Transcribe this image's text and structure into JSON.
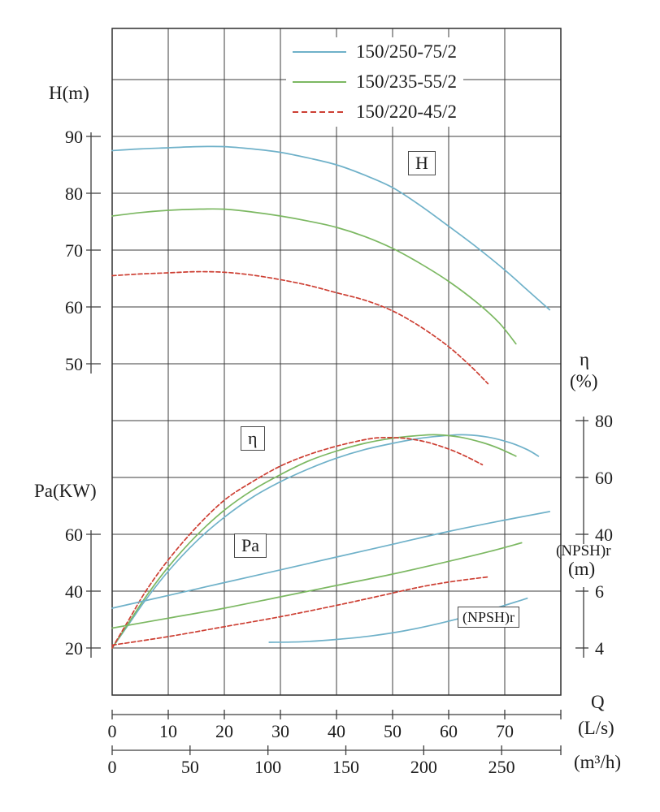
{
  "legend": {
    "items": [
      {
        "label": "150/250-75/2",
        "color": "#6fb1c9",
        "dash": "none"
      },
      {
        "label": "150/235-55/2",
        "color": "#7cb862",
        "dash": "none"
      },
      {
        "label": "150/220-45/2",
        "color": "#cd3f33",
        "dash": "5 3"
      }
    ]
  },
  "labels": {
    "h_axis": "H(m)",
    "pa_axis": "Pa(KW)",
    "eta": "η",
    "eta_unit": "(%)",
    "npsh": "(NPSH)r",
    "npsh_unit": "(m)",
    "q": "Q",
    "q_unit_ls": "(L/s)",
    "q_unit_m3h": "(m³/h)"
  },
  "curve_boxes": {
    "h": "H",
    "eta": "η",
    "pa": "Pa",
    "npsh": "(NPSH)r"
  },
  "chart_data": {
    "type": "line",
    "x_axis": {
      "label": "Q",
      "primary_unit": "L/s",
      "secondary_unit": "m³/h",
      "range_ls": [
        0,
        80
      ],
      "ls_ticks": [
        0,
        10,
        20,
        30,
        40,
        50,
        60,
        70
      ],
      "m3h_ticks": [
        0,
        50,
        100,
        150,
        200,
        250
      ]
    },
    "y_axes": {
      "H": {
        "title": "H(m)",
        "ticks": [
          90,
          80,
          70,
          60,
          50
        ]
      },
      "Pa": {
        "title": "Pa(KW)",
        "ticks": [
          60,
          40,
          20
        ]
      },
      "eta": {
        "title": "η(%)",
        "ticks": [
          80,
          60,
          40
        ]
      },
      "npsh": {
        "title": "(NPSH)r (m)",
        "ticks": [
          6,
          4
        ]
      }
    },
    "grid": true,
    "legend_position": "top",
    "series": [
      {
        "name": "H-150-250-75-2",
        "model": "150/250-75/2",
        "axis": "H",
        "color": "#6fb1c9",
        "dash": "none",
        "points": [
          [
            0,
            87.5
          ],
          [
            5,
            87.8
          ],
          [
            10,
            88
          ],
          [
            15,
            88.2
          ],
          [
            20,
            88.2
          ],
          [
            25,
            87.8
          ],
          [
            30,
            87.2
          ],
          [
            35,
            86.2
          ],
          [
            40,
            85
          ],
          [
            45,
            83.2
          ],
          [
            50,
            81
          ],
          [
            55,
            77.8
          ],
          [
            60,
            74.2
          ],
          [
            65,
            70.5
          ],
          [
            70,
            66.5
          ],
          [
            74,
            63
          ],
          [
            78,
            59.5
          ]
        ]
      },
      {
        "name": "H-150-235-55-2",
        "model": "150/235-55/2",
        "axis": "H",
        "color": "#7cb862",
        "dash": "none",
        "points": [
          [
            0,
            76
          ],
          [
            5,
            76.6
          ],
          [
            10,
            77
          ],
          [
            15,
            77.2
          ],
          [
            20,
            77.2
          ],
          [
            25,
            76.7
          ],
          [
            30,
            76
          ],
          [
            35,
            75.1
          ],
          [
            40,
            74
          ],
          [
            45,
            72.4
          ],
          [
            50,
            70.3
          ],
          [
            55,
            67.6
          ],
          [
            60,
            64.5
          ],
          [
            65,
            60.8
          ],
          [
            69,
            57.2
          ],
          [
            72,
            53.5
          ]
        ]
      },
      {
        "name": "H-150-220-45-2",
        "model": "150/220-45/2",
        "axis": "H",
        "color": "#cd3f33",
        "dash": "5 3",
        "points": [
          [
            0,
            65.5
          ],
          [
            5,
            65.8
          ],
          [
            10,
            66
          ],
          [
            15,
            66.2
          ],
          [
            20,
            66.1
          ],
          [
            25,
            65.6
          ],
          [
            30,
            64.8
          ],
          [
            35,
            63.8
          ],
          [
            40,
            62.5
          ],
          [
            45,
            61.2
          ],
          [
            50,
            59.3
          ],
          [
            55,
            56.5
          ],
          [
            60,
            53
          ],
          [
            64,
            49.5
          ],
          [
            67,
            46.5
          ]
        ]
      },
      {
        "name": "eta-150-250-75-2",
        "model": "150/250-75/2",
        "axis": "eta",
        "color": "#6fb1c9",
        "dash": "none",
        "points": [
          [
            0,
            0
          ],
          [
            3,
            8.5
          ],
          [
            6,
            17
          ],
          [
            10,
            27
          ],
          [
            15,
            37.5
          ],
          [
            20,
            46
          ],
          [
            25,
            53
          ],
          [
            30,
            58.5
          ],
          [
            35,
            63
          ],
          [
            40,
            66.8
          ],
          [
            45,
            69.8
          ],
          [
            50,
            72
          ],
          [
            55,
            73.8
          ],
          [
            60,
            74.8
          ],
          [
            63,
            75
          ],
          [
            67,
            74.2
          ],
          [
            71,
            72.2
          ],
          [
            74,
            69.8
          ],
          [
            76,
            67.5
          ]
        ]
      },
      {
        "name": "eta-150-235-55-2",
        "model": "150/235-55/2",
        "axis": "eta",
        "color": "#7cb862",
        "dash": "none",
        "points": [
          [
            0,
            0
          ],
          [
            3,
            9
          ],
          [
            6,
            18
          ],
          [
            10,
            28.5
          ],
          [
            15,
            39.5
          ],
          [
            20,
            48.5
          ],
          [
            25,
            55.5
          ],
          [
            30,
            61
          ],
          [
            35,
            65.8
          ],
          [
            40,
            69.3
          ],
          [
            45,
            72
          ],
          [
            50,
            73.8
          ],
          [
            55,
            74.8
          ],
          [
            58,
            75
          ],
          [
            62,
            74.2
          ],
          [
            66,
            72.3
          ],
          [
            69,
            70.2
          ],
          [
            72,
            67.5
          ]
        ]
      },
      {
        "name": "eta-150-220-45-2",
        "model": "150/220-45/2",
        "axis": "eta",
        "color": "#cd3f33",
        "dash": "5 3",
        "points": [
          [
            0,
            0
          ],
          [
            3,
            10
          ],
          [
            6,
            20
          ],
          [
            10,
            31
          ],
          [
            15,
            42.5
          ],
          [
            20,
            52
          ],
          [
            25,
            58.5
          ],
          [
            30,
            64
          ],
          [
            35,
            68
          ],
          [
            40,
            71
          ],
          [
            45,
            73.3
          ],
          [
            48,
            74
          ],
          [
            52,
            73.8
          ],
          [
            56,
            72.5
          ],
          [
            60,
            70
          ],
          [
            63,
            67.5
          ],
          [
            66,
            64.5
          ]
        ]
      },
      {
        "name": "Pa-150-250-75-2",
        "model": "150/250-75/2",
        "axis": "Pa",
        "color": "#6fb1c9",
        "dash": "none",
        "points": [
          [
            0,
            34
          ],
          [
            10,
            38.5
          ],
          [
            20,
            43
          ],
          [
            30,
            47.5
          ],
          [
            40,
            52
          ],
          [
            50,
            56.5
          ],
          [
            60,
            61
          ],
          [
            70,
            65
          ],
          [
            78,
            68
          ]
        ]
      },
      {
        "name": "Pa-150-235-55-2",
        "model": "150/235-55/2",
        "axis": "Pa",
        "color": "#7cb862",
        "dash": "none",
        "points": [
          [
            0,
            27
          ],
          [
            10,
            30.5
          ],
          [
            20,
            34
          ],
          [
            30,
            38
          ],
          [
            40,
            42
          ],
          [
            50,
            46
          ],
          [
            60,
            50.5
          ],
          [
            67,
            53.8
          ],
          [
            73,
            57
          ]
        ]
      },
      {
        "name": "Pa-150-220-45-2",
        "model": "150/220-45/2",
        "axis": "Pa",
        "color": "#cd3f33",
        "dash": "5 3",
        "points": [
          [
            0,
            21
          ],
          [
            10,
            24
          ],
          [
            20,
            27.5
          ],
          [
            30,
            31
          ],
          [
            40,
            35
          ],
          [
            47,
            38
          ],
          [
            55,
            41.5
          ],
          [
            61,
            43.5
          ],
          [
            67,
            45
          ]
        ]
      },
      {
        "name": "npsh-150-250-75-2",
        "model": "150/250-75/2",
        "axis": "npsh",
        "color": "#6fb1c9",
        "dash": "none",
        "points": [
          [
            28,
            4.2
          ],
          [
            34,
            4.22
          ],
          [
            40,
            4.3
          ],
          [
            46,
            4.42
          ],
          [
            52,
            4.6
          ],
          [
            58,
            4.85
          ],
          [
            64,
            5.15
          ],
          [
            70,
            5.5
          ],
          [
            74,
            5.75
          ]
        ]
      }
    ]
  }
}
